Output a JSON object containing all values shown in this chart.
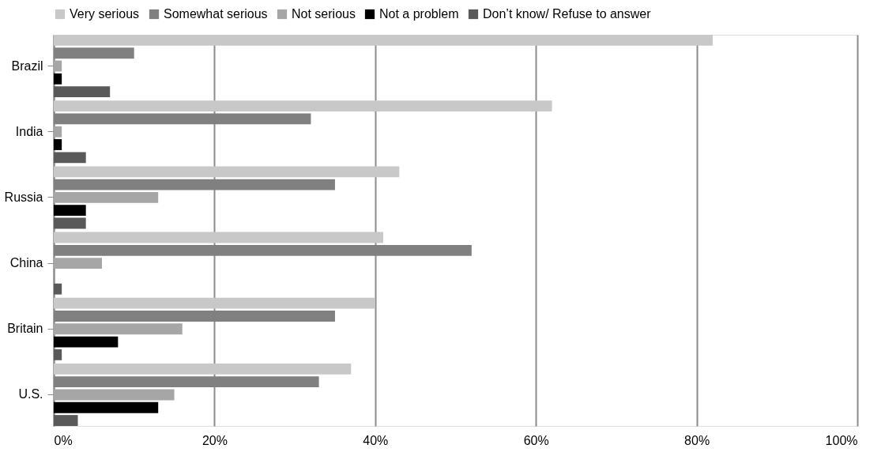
{
  "chart_data": {
    "type": "bar",
    "orientation": "horizontal",
    "categories": [
      "Brazil",
      "India",
      "Russia",
      "China",
      "Britain",
      "U.S."
    ],
    "series": [
      {
        "name": "Very serious",
        "color": "#c8c8c8",
        "values": [
          82,
          62,
          43,
          41,
          40,
          37
        ]
      },
      {
        "name": "Somewhat serious",
        "color": "#808080",
        "values": [
          10,
          32,
          35,
          52,
          35,
          33
        ]
      },
      {
        "name": "Not serious",
        "color": "#a6a6a6",
        "values": [
          1,
          1,
          13,
          6,
          16,
          15
        ]
      },
      {
        "name": "Not a problem",
        "color": "#000000",
        "values": [
          1,
          1,
          4,
          0,
          8,
          13
        ]
      },
      {
        "name": "Don’t know/ Refuse to answer",
        "color": "#595959",
        "values": [
          7,
          4,
          4,
          1,
          1,
          3
        ]
      }
    ],
    "xlim": [
      0,
      100
    ],
    "xticks": [
      {
        "value": 0,
        "label": "0%"
      },
      {
        "value": 20,
        "label": "20%"
      },
      {
        "value": 40,
        "label": "40%"
      },
      {
        "value": 60,
        "label": "60%"
      },
      {
        "value": 80,
        "label": "80%"
      },
      {
        "value": 100,
        "label": "100%"
      }
    ],
    "grid": "x",
    "legend": "top"
  }
}
